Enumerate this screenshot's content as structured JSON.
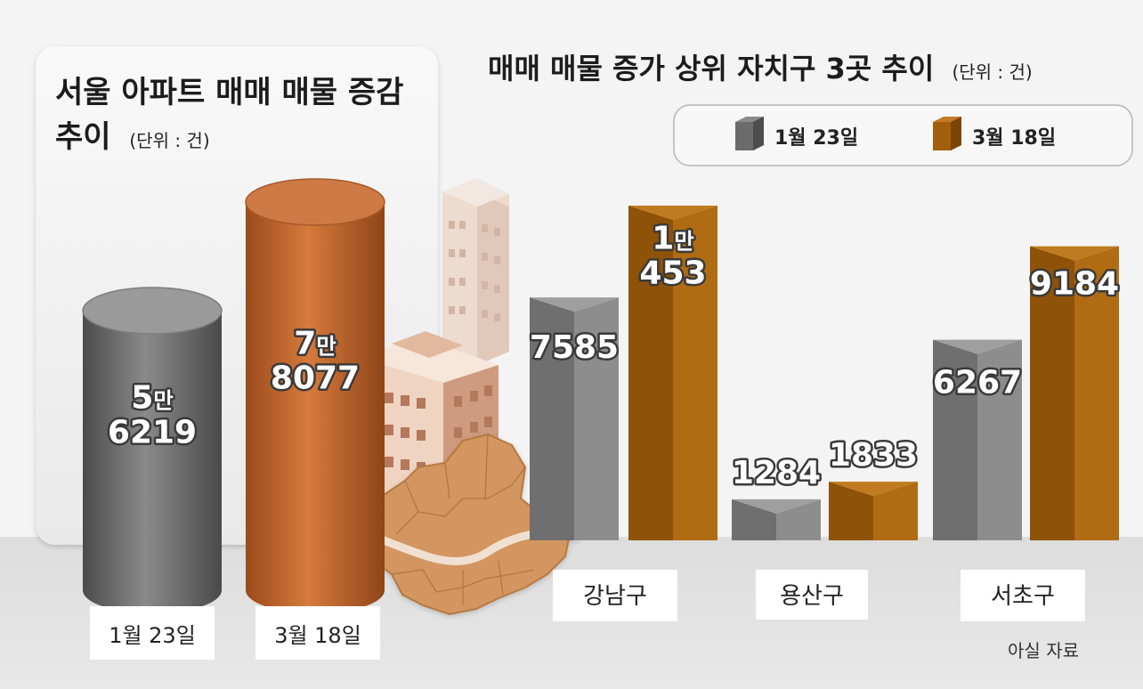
{
  "left_title_line1": "서울 아파트 매매 매물 증감",
  "left_title_line2": "추이",
  "left_unit": "(단위 : 건)",
  "right_title": "매매 매물 증가 상위 자치구 3곳 추이",
  "right_unit": "(단위 : 건)",
  "legend": [
    {
      "label": "1월 23일",
      "color": "#7a7a7a"
    },
    {
      "label": "3월 18일",
      "color": "#a8620e"
    }
  ],
  "source": "아실 자료",
  "colors": {
    "gray": "#6f6f6f",
    "orange": "#c0652d",
    "brown": "#a25f0d"
  },
  "chart_data": [
    {
      "type": "bar",
      "title": "서울 아파트 매매 매물 증감 추이",
      "unit": "건",
      "categories": [
        "1월 23일",
        "3월 18일"
      ],
      "values": [
        56219,
        78077
      ],
      "value_labels": [
        [
          "5만",
          "6219"
        ],
        [
          "7만",
          "8077"
        ]
      ]
    },
    {
      "type": "bar",
      "title": "매매 매물 증가 상위 자치구 3곳 추이",
      "unit": "건",
      "categories": [
        "강남구",
        "용산구",
        "서초구"
      ],
      "series": [
        {
          "name": "1월 23일",
          "values": [
            7585,
            1284,
            6267
          ],
          "labels": [
            [
              "7585"
            ],
            [
              "1284"
            ],
            [
              "6267"
            ]
          ]
        },
        {
          "name": "3월 18일",
          "values": [
            10453,
            1833,
            9184
          ],
          "labels": [
            [
              "1만",
              "453"
            ],
            [
              "1833"
            ],
            [
              "9184"
            ]
          ]
        }
      ]
    }
  ]
}
